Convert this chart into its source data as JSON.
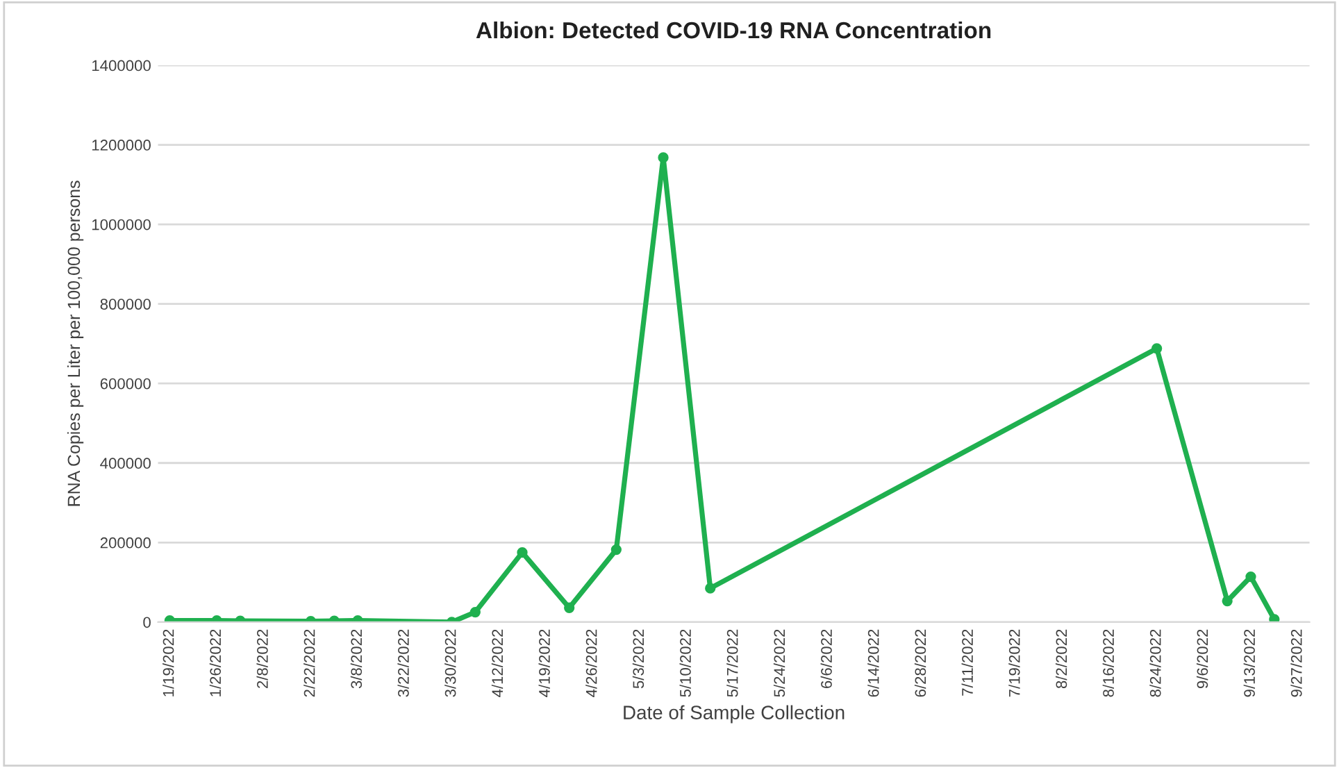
{
  "chart_data": {
    "type": "line",
    "title": "Albion: Detected COVID-19 RNA Concentration",
    "xlabel": "Date of Sample Collection",
    "ylabel": "RNA Copies per Liter per 100,000 persons",
    "categories": [
      "1/19/2022",
      null,
      "1/26/2022",
      null,
      "2/8/2022",
      null,
      "2/22/2022",
      null,
      "3/8/2022",
      null,
      "3/22/2022",
      null,
      "3/30/2022",
      null,
      "4/12/2022",
      null,
      "4/19/2022",
      null,
      "4/26/2022",
      null,
      "5/3/2022",
      null,
      "5/10/2022",
      null,
      "5/17/2022",
      null,
      "5/24/2022",
      null,
      "6/6/2022",
      null,
      "6/14/2022",
      null,
      "6/28/2022",
      null,
      "7/11/2022",
      null,
      "7/19/2022",
      null,
      "8/2/2022",
      null,
      "8/16/2022",
      null,
      "8/24/2022",
      null,
      "9/6/2022",
      null,
      "9/13/2022",
      null,
      "9/27/2022"
    ],
    "series": [
      {
        "color": "#1fb04f",
        "values": [
          4000,
          null,
          4000,
          3000,
          null,
          null,
          2000,
          3000,
          4000,
          null,
          null,
          null,
          0,
          25000,
          null,
          175000,
          null,
          36000,
          null,
          182000,
          null,
          1168000,
          null,
          85000,
          null,
          null,
          null,
          null,
          null,
          null,
          null,
          null,
          null,
          null,
          null,
          null,
          null,
          null,
          null,
          null,
          null,
          null,
          688000,
          null,
          null,
          53000,
          114000,
          7000,
          null
        ]
      }
    ],
    "ylim": [
      0,
      1400000
    ],
    "yticks": [
      0,
      200000,
      400000,
      600000,
      800000,
      1000000,
      1200000,
      1400000
    ],
    "grid": "y",
    "marker": "circle",
    "line_style": "solid"
  }
}
